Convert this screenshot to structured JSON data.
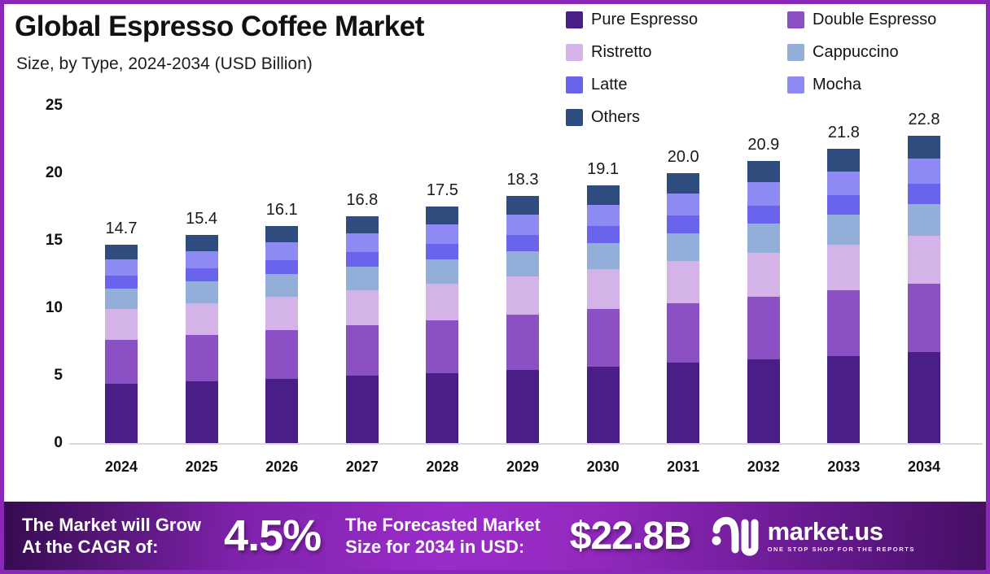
{
  "header": {
    "title": "Global Espresso Coffee Market",
    "subtitle": "Size, by Type, 2024-2034 (USD Billion)"
  },
  "chart_data": {
    "type": "bar",
    "stacked": true,
    "title": "Global Espresso Coffee Market",
    "subtitle": "Size, by Type, 2024-2034 (USD Billion)",
    "unit": "USD Billion",
    "grid": false,
    "legend_position": "top-right",
    "ylim": [
      0,
      25
    ],
    "yticks": [
      0,
      5,
      10,
      15,
      20,
      25
    ],
    "categories": [
      "2024",
      "2025",
      "2026",
      "2027",
      "2028",
      "2029",
      "2030",
      "2031",
      "2032",
      "2033",
      "2034"
    ],
    "totals": [
      14.7,
      15.4,
      16.1,
      16.8,
      17.5,
      18.3,
      19.1,
      20.0,
      20.9,
      21.8,
      22.8
    ],
    "total_labels": [
      "14.7",
      "15.4",
      "16.1",
      "16.8",
      "17.5",
      "18.3",
      "19.1",
      "20.0",
      "20.9",
      "21.8",
      "22.8"
    ],
    "series": [
      {
        "name": "Pure Espresso",
        "color": "#4A1E87",
        "values": [
          4.37,
          4.57,
          4.78,
          4.99,
          5.2,
          5.43,
          5.67,
          5.94,
          6.21,
          6.47,
          6.77
        ]
      },
      {
        "name": "Double Espresso",
        "color": "#8C50C5",
        "values": [
          3.26,
          3.42,
          3.57,
          3.73,
          3.89,
          4.06,
          4.24,
          4.44,
          4.64,
          4.84,
          5.06
        ]
      },
      {
        "name": "Ristretto",
        "color": "#D4B3E8",
        "values": [
          2.28,
          2.39,
          2.5,
          2.6,
          2.71,
          2.84,
          2.96,
          3.1,
          3.24,
          3.38,
          3.53
        ]
      },
      {
        "name": "Cappuccino",
        "color": "#93AED9",
        "values": [
          1.51,
          1.59,
          1.66,
          1.73,
          1.8,
          1.88,
          1.97,
          2.06,
          2.15,
          2.25,
          2.35
        ]
      },
      {
        "name": "Latte",
        "color": "#6A63EC",
        "values": [
          0.96,
          1.0,
          1.05,
          1.09,
          1.14,
          1.19,
          1.24,
          1.3,
          1.36,
          1.42,
          1.48
        ]
      },
      {
        "name": "Mocha",
        "color": "#8D8BF3",
        "values": [
          1.21,
          1.26,
          1.32,
          1.38,
          1.44,
          1.5,
          1.57,
          1.64,
          1.71,
          1.79,
          1.87
        ]
      },
      {
        "name": "Others",
        "color": "#2E4C7E",
        "values": [
          1.12,
          1.17,
          1.22,
          1.28,
          1.33,
          1.39,
          1.45,
          1.52,
          1.59,
          1.66,
          1.73
        ]
      }
    ]
  },
  "footer": {
    "cagr_label_line1": "The Market will Grow",
    "cagr_label_line2": "At the CAGR of:",
    "cagr_value": "4.5%",
    "forecast_label_line1": "The Forecasted Market",
    "forecast_label_line2": "Size for 2034 in USD:",
    "forecast_value": "$22.8B",
    "brand_name": "market.us",
    "brand_tagline": "ONE STOP SHOP FOR THE REPORTS"
  },
  "colors": {
    "border": "#8927B8",
    "axis_line": "#D9D9D9",
    "banner_gradient_start": "#350B50",
    "banner_gradient_mid": "#9A2CC9",
    "banner_gradient_end": "#440F63",
    "text": "#111111"
  }
}
